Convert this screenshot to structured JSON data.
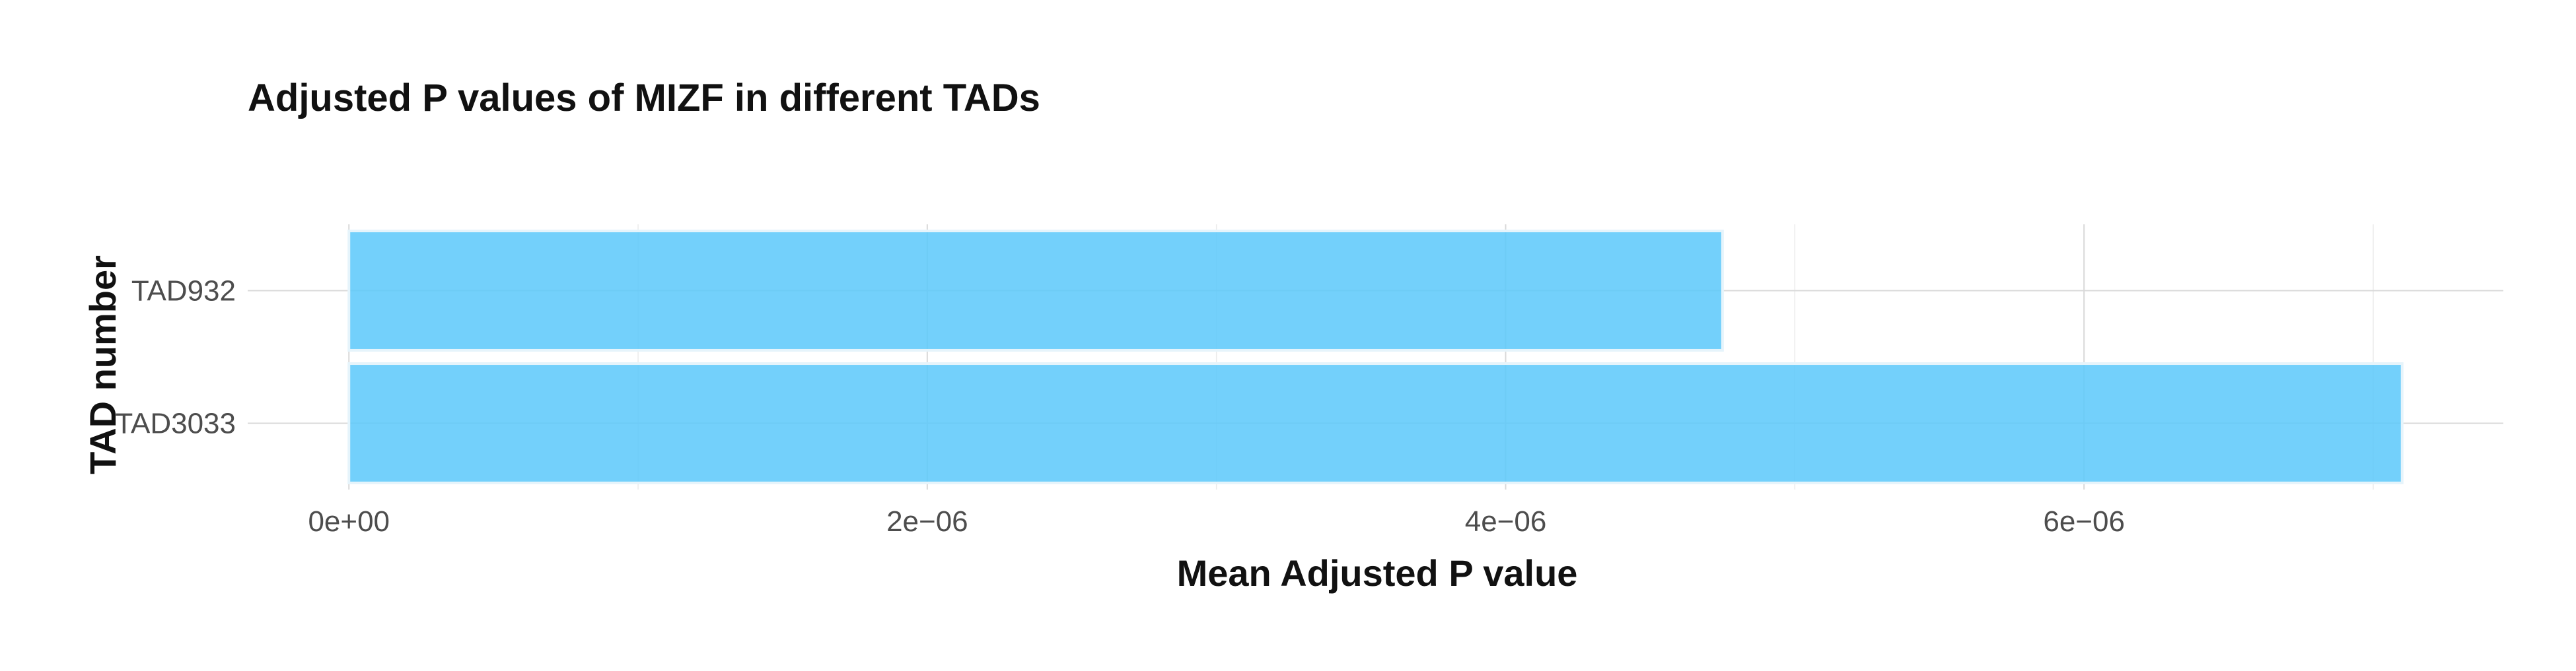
{
  "chart_data": {
    "type": "bar",
    "orientation": "horizontal",
    "title": "Adjusted P values of MIZF in different TADs",
    "xlabel": "Mean Adjusted P value",
    "ylabel": "TAD number",
    "categories": [
      "TAD932",
      "TAD3033"
    ],
    "values": [
      4.75e-06,
      7.1e-06
    ],
    "xlim": [
      -3.5e-07,
      7.45e-06
    ],
    "x_ticks": [
      0,
      2e-06,
      4e-06,
      6e-06
    ],
    "x_tick_labels": [
      "0e+00",
      "2e−06",
      "4e−06",
      "6e−06"
    ],
    "grid": true,
    "legend": "none",
    "bar_color": "#5ac8fa"
  }
}
